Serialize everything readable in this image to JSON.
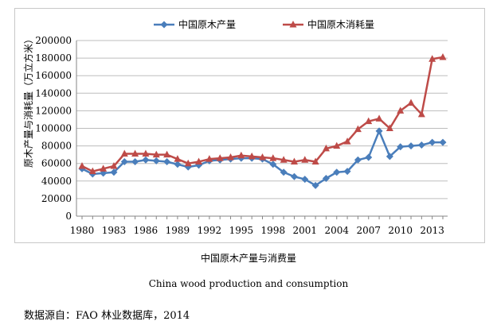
{
  "captions": {
    "chinese": "中国原木产量与消费量",
    "english": "China wood production and consumption",
    "source": "数据源自：FAO 林业数据库，2014"
  },
  "chart_data": {
    "type": "line",
    "ylabel": "原木产量与消耗量（万立方米）",
    "xlabel": "",
    "title": "",
    "ylim": [
      0,
      200000
    ],
    "ytick_step": 20000,
    "xlim": [
      1980,
      2014
    ],
    "x_tick_labels": [
      "1980",
      "1983",
      "1986",
      "1989",
      "1992",
      "1995",
      "1998",
      "2001",
      "2004",
      "2007",
      "2010",
      "2013"
    ],
    "grid": "horizontal",
    "legend_position": "top",
    "x": [
      1980,
      1981,
      1982,
      1983,
      1984,
      1985,
      1986,
      1987,
      1988,
      1989,
      1990,
      1991,
      1992,
      1993,
      1994,
      1995,
      1996,
      1997,
      1998,
      1999,
      2000,
      2001,
      2002,
      2003,
      2004,
      2005,
      2006,
      2007,
      2008,
      2009,
      2010,
      2011,
      2012,
      2013,
      2014
    ],
    "series": [
      {
        "name": "中国原木产量",
        "color": "#4a7ebb",
        "marker": "diamond",
        "values": [
          54000,
          48000,
          49000,
          50000,
          62000,
          62000,
          64000,
          63000,
          62000,
          59000,
          56000,
          58000,
          63000,
          64000,
          65000,
          66000,
          66000,
          65000,
          59000,
          50000,
          45000,
          42000,
          35000,
          43000,
          50000,
          51000,
          64000,
          67000,
          97000,
          68000,
          79000,
          80000,
          81000,
          84000,
          84000
        ]
      },
      {
        "name": "中国原木消耗量",
        "color": "#be4b48",
        "marker": "triangle",
        "values": [
          57000,
          51000,
          54000,
          57000,
          71000,
          71000,
          71000,
          70000,
          70000,
          65000,
          60000,
          62000,
          65000,
          66000,
          67000,
          69000,
          68000,
          67000,
          66000,
          64000,
          62000,
          64000,
          62000,
          77000,
          80000,
          85000,
          99000,
          108000,
          111000,
          100000,
          120000,
          129000,
          116000,
          179000,
          181000
        ]
      }
    ]
  }
}
